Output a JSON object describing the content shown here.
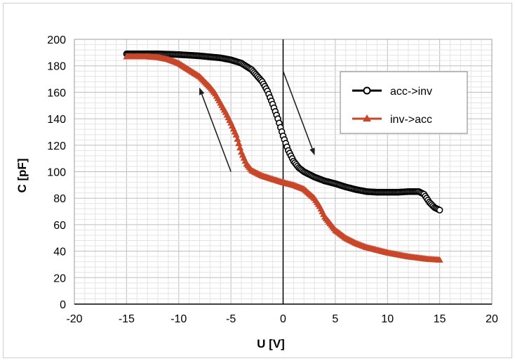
{
  "chart_data": {
    "type": "scatter",
    "xlabel": "U [V]",
    "ylabel": "C [pF]",
    "xlim": [
      -20,
      20
    ],
    "ylim": [
      0,
      200
    ],
    "x_ticks": [
      -20,
      -15,
      -10,
      -5,
      0,
      5,
      10,
      15,
      20
    ],
    "y_ticks": [
      0,
      20,
      40,
      60,
      80,
      100,
      120,
      140,
      160,
      180,
      200
    ],
    "grid": true,
    "legend_position": "right",
    "series": [
      {
        "name": "acc->inv",
        "marker": "circle",
        "color": "#000000",
        "x": [
          -15,
          -12,
          -10,
          -8,
          -6,
          -5,
          -4,
          -3,
          -2,
          -1.5,
          -1,
          -0.5,
          0,
          0.5,
          1,
          1.5,
          2,
          3,
          4,
          5,
          6,
          7,
          8,
          9,
          10,
          11,
          12,
          13,
          13.5,
          14,
          14.5,
          15
        ],
        "y": [
          189,
          189,
          188.5,
          187.5,
          186,
          184.5,
          182,
          177,
          168,
          161,
          151,
          140,
          127,
          116,
          108,
          103,
          100,
          96,
          93,
          91,
          88.5,
          86.5,
          85,
          84.5,
          84.5,
          84.5,
          85,
          85,
          83,
          77,
          73,
          71
        ]
      },
      {
        "name": "inv->acc",
        "marker": "triangle",
        "color": "#c8472a",
        "x": [
          -15,
          -13,
          -12,
          -11,
          -10,
          -9,
          -8,
          -7,
          -6.5,
          -6,
          -5.5,
          -5,
          -4.5,
          -4,
          -3.5,
          -3,
          -2,
          -1,
          0,
          1,
          2,
          3,
          3.5,
          4,
          5,
          6,
          7,
          8,
          9,
          10,
          11,
          12,
          13,
          14,
          15
        ],
        "y": [
          187,
          187,
          186.5,
          185,
          182,
          177,
          172,
          164,
          159,
          152,
          145,
          137,
          128,
          115,
          106,
          101,
          97,
          94.5,
          92,
          90,
          87,
          80,
          74,
          66,
          56,
          50,
          46,
          43,
          41,
          39,
          37.5,
          36,
          35,
          34,
          33.5
        ]
      }
    ],
    "annotations": [
      {
        "type": "arrow",
        "from": [
          -5,
          100
        ],
        "to": [
          -8,
          163
        ]
      },
      {
        "type": "arrow",
        "from": [
          0,
          176
        ],
        "to": [
          3,
          113
        ]
      }
    ]
  }
}
